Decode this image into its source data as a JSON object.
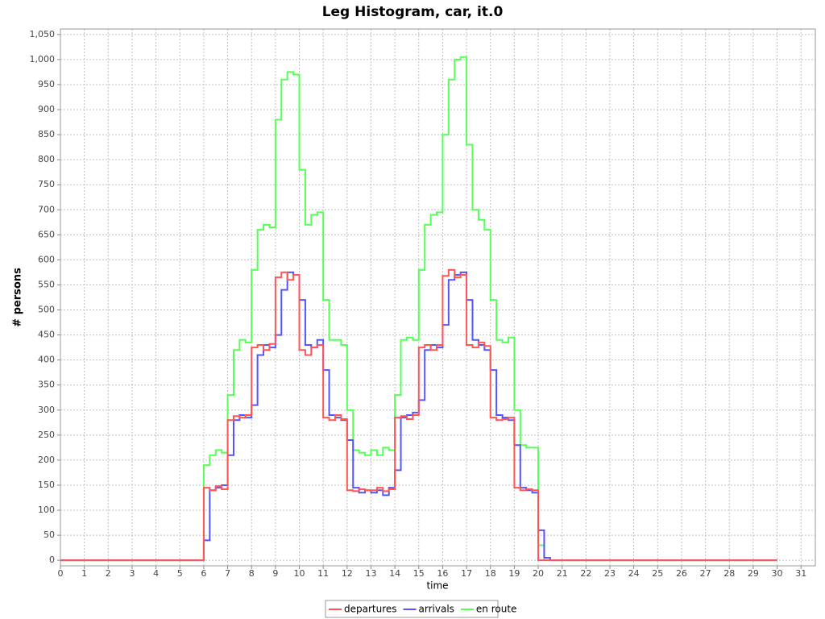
{
  "chart_data": {
    "type": "step",
    "title": "Leg Histogram, car, it.0",
    "x_label": "time",
    "y_label": "# persons",
    "x": [
      0,
      6,
      6.25,
      6.5,
      6.75,
      7,
      7.25,
      7.5,
      7.75,
      8,
      8.25,
      8.5,
      8.75,
      9,
      9.25,
      9.5,
      9.75,
      10,
      10.25,
      10.5,
      10.75,
      11,
      11.25,
      11.5,
      11.75,
      12,
      12.25,
      12.5,
      12.75,
      13,
      13.25,
      13.5,
      13.75,
      14,
      14.25,
      14.5,
      14.75,
      15,
      15.25,
      15.5,
      15.75,
      16,
      16.25,
      16.5,
      16.75,
      17,
      17.25,
      17.5,
      17.75,
      18,
      18.25,
      18.5,
      18.75,
      19,
      19.25,
      19.5,
      19.75,
      20,
      20.25,
      20.5,
      30
    ],
    "series": [
      {
        "name": "departures",
        "color": "#ff5555",
        "values": [
          0,
          145,
          140,
          148,
          142,
          280,
          288,
          285,
          290,
          425,
          430,
          420,
          432,
          565,
          575,
          560,
          570,
          420,
          410,
          425,
          430,
          285,
          280,
          290,
          282,
          140,
          138,
          142,
          140,
          140,
          145,
          138,
          142,
          285,
          288,
          282,
          290,
          425,
          430,
          420,
          430,
          568,
          580,
          565,
          570,
          430,
          425,
          435,
          428,
          285,
          280,
          282,
          285,
          145,
          140,
          142,
          140,
          0,
          0,
          0,
          0
        ]
      },
      {
        "name": "arrivals",
        "color": "#5555ff",
        "values": [
          0,
          40,
          140,
          145,
          150,
          210,
          280,
          290,
          285,
          310,
          410,
          430,
          425,
          450,
          540,
          575,
          570,
          520,
          430,
          425,
          440,
          380,
          290,
          285,
          280,
          240,
          145,
          135,
          140,
          135,
          140,
          130,
          145,
          180,
          285,
          290,
          295,
          320,
          420,
          430,
          425,
          470,
          560,
          570,
          575,
          520,
          440,
          430,
          420,
          380,
          290,
          285,
          280,
          230,
          145,
          140,
          135,
          60,
          5,
          0,
          0
        ]
      },
      {
        "name": "en route",
        "color": "#55ff55",
        "values": [
          0,
          190,
          210,
          220,
          215,
          330,
          420,
          440,
          435,
          580,
          660,
          670,
          665,
          880,
          960,
          975,
          970,
          780,
          670,
          690,
          695,
          520,
          440,
          440,
          430,
          300,
          220,
          215,
          210,
          220,
          210,
          225,
          220,
          330,
          440,
          445,
          440,
          580,
          670,
          690,
          695,
          850,
          960,
          1000,
          1005,
          830,
          700,
          680,
          660,
          520,
          440,
          435,
          445,
          300,
          230,
          225,
          225,
          30,
          0,
          0,
          0
        ]
      }
    ],
    "xlim": [
      0,
      31.6
    ],
    "xticks": [
      0,
      1,
      2,
      3,
      4,
      5,
      6,
      7,
      8,
      9,
      10,
      11,
      12,
      13,
      14,
      15,
      16,
      17,
      18,
      19,
      20,
      21,
      22,
      23,
      24,
      25,
      26,
      27,
      28,
      29,
      30,
      31
    ],
    "ylim": [
      -11,
      1061
    ],
    "yticks": [
      0,
      50,
      100,
      150,
      200,
      250,
      300,
      350,
      400,
      450,
      500,
      550,
      600,
      650,
      700,
      750,
      800,
      850,
      900,
      950,
      {
        "value": 1000,
        "label": "1,000"
      },
      {
        "value": 1050,
        "label": "1,050"
      }
    ],
    "grid": true,
    "legend": "bottom"
  }
}
